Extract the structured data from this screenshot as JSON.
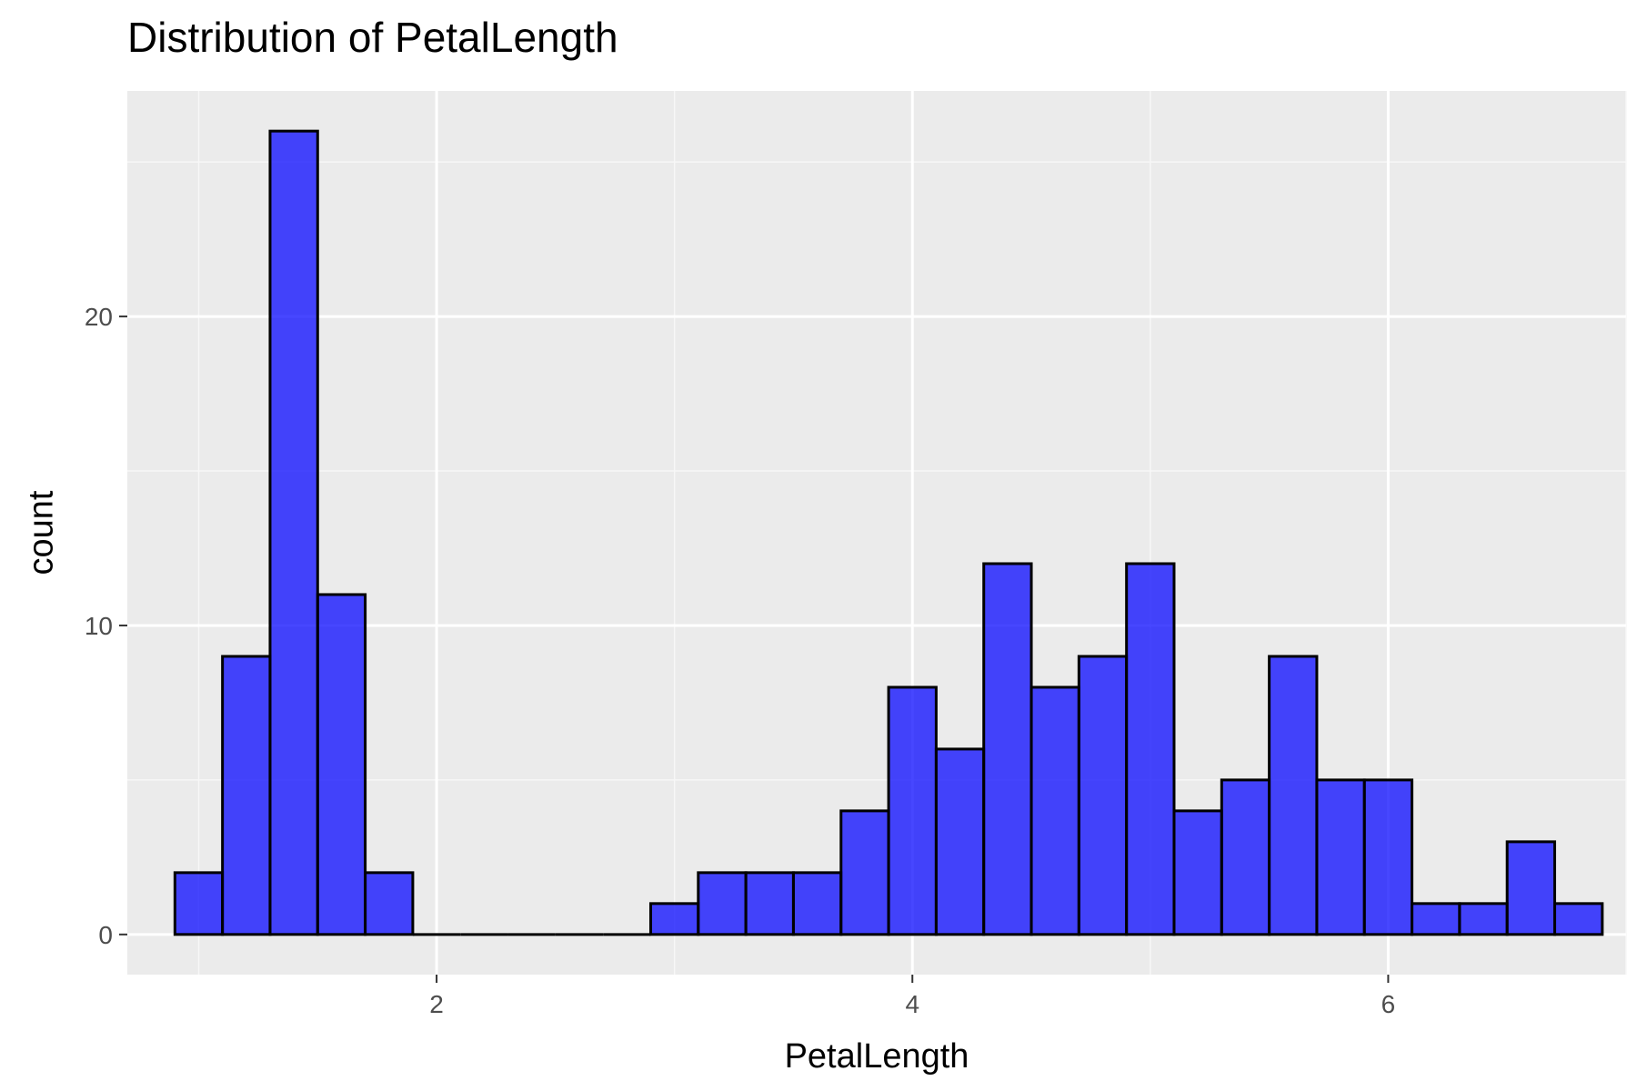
{
  "chart_data": {
    "type": "bar",
    "subtype": "histogram",
    "title": "Distribution of PetalLength",
    "xlabel": "PetalLength",
    "ylabel": "count",
    "xlim": [
      0.7,
      7.0
    ],
    "ylim": [
      -1.3,
      27.3
    ],
    "x_ticks": [
      2,
      4,
      6
    ],
    "y_ticks": [
      0,
      10,
      20
    ],
    "x_minor_grid": [
      1,
      3,
      5,
      7
    ],
    "y_minor_grid": [
      5,
      15,
      25
    ],
    "grid": true,
    "legend": "none",
    "bin_width": 0.2,
    "bins": [
      {
        "x0": 0.9,
        "x1": 1.1,
        "count": 2
      },
      {
        "x0": 1.1,
        "x1": 1.3,
        "count": 9
      },
      {
        "x0": 1.3,
        "x1": 1.5,
        "count": 26
      },
      {
        "x0": 1.5,
        "x1": 1.7,
        "count": 11
      },
      {
        "x0": 1.7,
        "x1": 1.9,
        "count": 2
      },
      {
        "x0": 1.9,
        "x1": 2.1,
        "count": 0
      },
      {
        "x0": 2.1,
        "x1": 2.3,
        "count": 0
      },
      {
        "x0": 2.3,
        "x1": 2.5,
        "count": 0
      },
      {
        "x0": 2.5,
        "x1": 2.7,
        "count": 0
      },
      {
        "x0": 2.7,
        "x1": 2.9,
        "count": 0
      },
      {
        "x0": 2.9,
        "x1": 3.1,
        "count": 1
      },
      {
        "x0": 3.1,
        "x1": 3.3,
        "count": 2
      },
      {
        "x0": 3.3,
        "x1": 3.5,
        "count": 2
      },
      {
        "x0": 3.5,
        "x1": 3.7,
        "count": 2
      },
      {
        "x0": 3.7,
        "x1": 3.9,
        "count": 4
      },
      {
        "x0": 3.9,
        "x1": 4.1,
        "count": 8
      },
      {
        "x0": 4.1,
        "x1": 4.3,
        "count": 6
      },
      {
        "x0": 4.3,
        "x1": 4.5,
        "count": 12
      },
      {
        "x0": 4.5,
        "x1": 4.7,
        "count": 8
      },
      {
        "x0": 4.7,
        "x1": 4.9,
        "count": 9
      },
      {
        "x0": 4.9,
        "x1": 5.1,
        "count": 12
      },
      {
        "x0": 5.1,
        "x1": 5.3,
        "count": 4
      },
      {
        "x0": 5.3,
        "x1": 5.5,
        "count": 5
      },
      {
        "x0": 5.5,
        "x1": 5.7,
        "count": 9
      },
      {
        "x0": 5.7,
        "x1": 5.9,
        "count": 5
      },
      {
        "x0": 5.9,
        "x1": 6.1,
        "count": 5
      },
      {
        "x0": 6.1,
        "x1": 6.3,
        "count": 1
      },
      {
        "x0": 6.3,
        "x1": 6.5,
        "count": 1
      },
      {
        "x0": 6.5,
        "x1": 6.7,
        "count": 3
      },
      {
        "x0": 6.7,
        "x1": 6.9,
        "count": 1
      }
    ],
    "colors": {
      "bar_fill": "#0000ff",
      "bar_fill_opacity": 0.72,
      "bar_stroke": "#000000",
      "panel_background": "#ebebeb",
      "grid_major": "#ffffff",
      "grid_minor": "#f7f7f7",
      "tick_text": "#4d4d4d"
    }
  }
}
